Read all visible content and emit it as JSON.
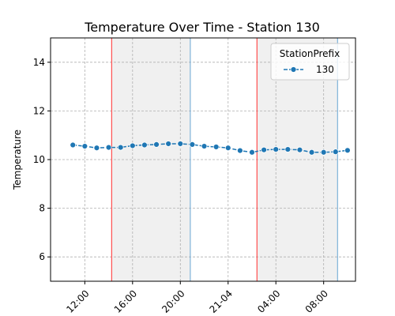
{
  "chart_data": {
    "type": "line",
    "title": "Temperature Over Time - Station 130",
    "xlabel": "",
    "ylabel": "Temperature",
    "ylim": [
      5,
      15
    ],
    "xlim": [
      "2024-04-20T09:08",
      "2024-04-21T10:40"
    ],
    "x_ticks": [
      {
        "x": "2024-04-20T12:00",
        "label": "12:00"
      },
      {
        "x": "2024-04-20T16:00",
        "label": "16:00"
      },
      {
        "x": "2024-04-20T20:00",
        "label": "20:00"
      },
      {
        "x": "2024-04-21T00:00",
        "label": "21-04"
      },
      {
        "x": "2024-04-21T04:00",
        "label": "04:00"
      },
      {
        "x": "2024-04-21T08:00",
        "label": "08:00"
      }
    ],
    "y_ticks": [
      6,
      8,
      10,
      12,
      14
    ],
    "grid": true,
    "legend": {
      "title": "StationPrefix",
      "placement": "top-right"
    },
    "series": [
      {
        "name": "130",
        "color": "#1f77b4",
        "marker": "circle",
        "x": [
          "2024-04-20T11:00",
          "2024-04-20T12:00",
          "2024-04-20T13:00",
          "2024-04-20T14:00",
          "2024-04-20T15:00",
          "2024-04-20T16:00",
          "2024-04-20T17:00",
          "2024-04-20T18:00",
          "2024-04-20T19:00",
          "2024-04-20T20:00",
          "2024-04-20T21:00",
          "2024-04-20T22:00",
          "2024-04-20T23:00",
          "2024-04-21T00:00",
          "2024-04-21T01:00",
          "2024-04-21T02:00",
          "2024-04-21T03:00",
          "2024-04-21T04:00",
          "2024-04-21T05:00",
          "2024-04-21T06:00",
          "2024-04-21T07:00",
          "2024-04-21T08:00",
          "2024-04-21T09:00",
          "2024-04-21T10:00"
        ],
        "y": [
          10.6,
          10.55,
          10.48,
          10.5,
          10.5,
          10.57,
          10.6,
          10.62,
          10.65,
          10.65,
          10.62,
          10.55,
          10.52,
          10.48,
          10.37,
          10.3,
          10.4,
          10.42,
          10.42,
          10.4,
          10.3,
          10.3,
          10.32,
          10.38
        ]
      }
    ],
    "shaded_regions": [
      {
        "start": "2024-04-20T14:15",
        "end": "2024-04-20T20:50",
        "color": "#f0f0f0"
      },
      {
        "start": "2024-04-21T02:25",
        "end": "2024-04-21T09:10",
        "color": "#f0f0f0"
      }
    ],
    "vertical_lines": [
      {
        "x": "2024-04-20T14:15",
        "color": "#ff4d4d"
      },
      {
        "x": "2024-04-20T20:50",
        "color": "#7fb3d9"
      },
      {
        "x": "2024-04-21T02:25",
        "color": "#ff4d4d"
      },
      {
        "x": "2024-04-21T09:10",
        "color": "#7fb3d9"
      }
    ]
  }
}
